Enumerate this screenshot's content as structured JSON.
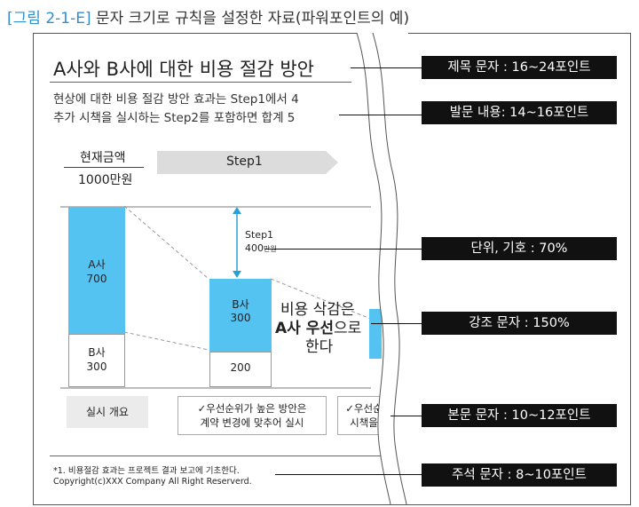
{
  "figure_title": {
    "tag": "[그림 2-1-E]",
    "text": " 문자 크기로 규칙을 설정한 자료(파워포인트의 예)"
  },
  "slide": {
    "title": "A사와 B사에 대한 비용 절감 방안",
    "body_line1": "현상에 대한 비용 절감 방안 효과는 Step1에서 4",
    "body_line2": "추가 시책을 실시하는 Step2를 포함하면 합계 5",
    "current_label": "현재금액",
    "current_value": "1000만원",
    "step_arrow": "Step1",
    "bar_a_label": "A사\n700",
    "bar_b_label": "B사\n300",
    "step_delta_label": "Step1",
    "step_delta_value": "400",
    "step_delta_unit": "만원",
    "bar2_blue_label": "B사\n300",
    "bar2_white_label": "200",
    "emphasis_line1": "비용 삭감은",
    "emphasis_line2a": "A사 ",
    "emphasis_line2b": "우선",
    "emphasis_line2c": "으로",
    "emphasis_line3": "한다",
    "impl_box": "실시 개요",
    "note1_line1": "✓우선순위가 높은 방안은",
    "note1_line2": "계약 변경에 맞추어 실시",
    "note2_line1": "✓우선순",
    "note2_line2": "시책을",
    "footnote1": "*1. 비용절감 효과는 프로젝트 결과 보고에 기초한다.",
    "footnote2": "Copyright(c)XXX Company All Right Reserverd."
  },
  "callouts": [
    "제목 문자 : 16~24포인트",
    "발문 내용: 14~16포인트",
    "단위, 기호 : 70%",
    "강조 문자 : 150%",
    "본문 문자 : 10~12포인트",
    "주석 문자 : 8~10포인트"
  ],
  "colors": {
    "accent_blue": "#55c3f2",
    "title_tag": "#2f8fd1",
    "label_bg": "#111111"
  }
}
